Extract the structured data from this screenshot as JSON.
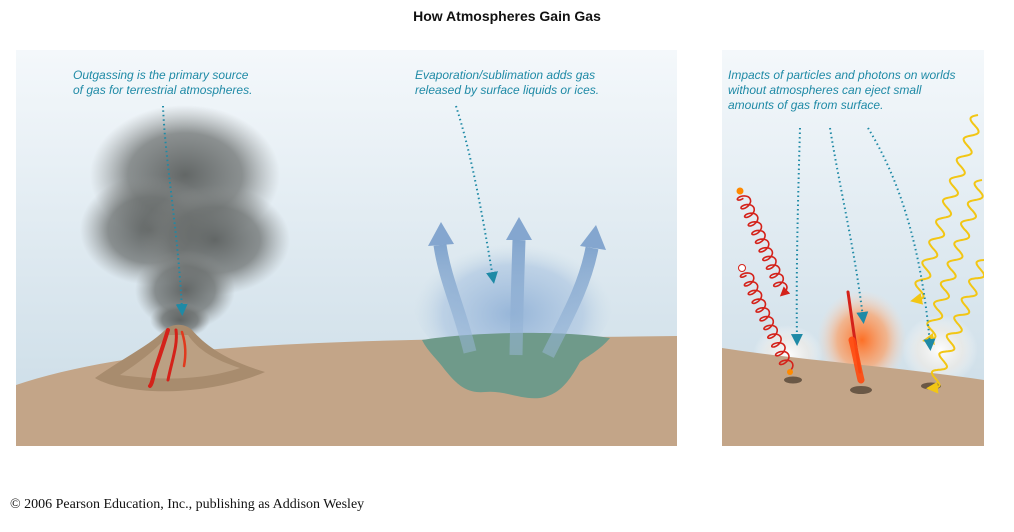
{
  "title": "How Atmospheres Gain Gas",
  "panels": [
    {
      "id": "outgassing",
      "caption_lines": [
        "Outgassing is the primary source",
        "of gas for terrestrial atmospheres."
      ]
    },
    {
      "id": "evaporation",
      "caption_lines": [
        "Evaporation/sublimation adds gas",
        "released by surface liquids or ices."
      ]
    },
    {
      "id": "impacts",
      "caption_lines": [
        "Impacts of particles and photons on worlds",
        "without atmospheres can eject small",
        "amounts of gas from surface."
      ]
    }
  ],
  "colors": {
    "sky_top": "#f4f8fb",
    "sky_bottom": "#c9dbe6",
    "ground": "#c3a588",
    "caption": "#1f8aa6",
    "lava": "#d4221a",
    "photon": "#f2c614",
    "pond": "#6f9a8a"
  },
  "copyright": "© 2006 Pearson Education, Inc., publishing as Addison Wesley"
}
